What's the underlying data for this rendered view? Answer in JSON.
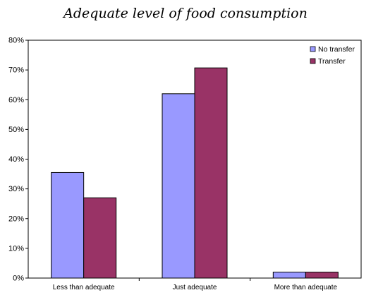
{
  "chart_data": {
    "type": "bar",
    "title": "Adequate level of food consumption",
    "xlabel": "",
    "ylabel": "",
    "categories": [
      "Less than adequate",
      "Just adequate",
      "More than adequate"
    ],
    "series": [
      {
        "name": "No transfer",
        "color": "#9999ff",
        "values": [
          35.5,
          62,
          2
        ]
      },
      {
        "name": "Transfer",
        "color": "#993366",
        "values": [
          27,
          70.7,
          2
        ]
      }
    ],
    "ylim": [
      0,
      80
    ],
    "yticks": [
      "0%",
      "10%",
      "20%",
      "30%",
      "40%",
      "50%",
      "60%",
      "70%",
      "80%"
    ],
    "legend_position": "top-right",
    "grid": false
  }
}
